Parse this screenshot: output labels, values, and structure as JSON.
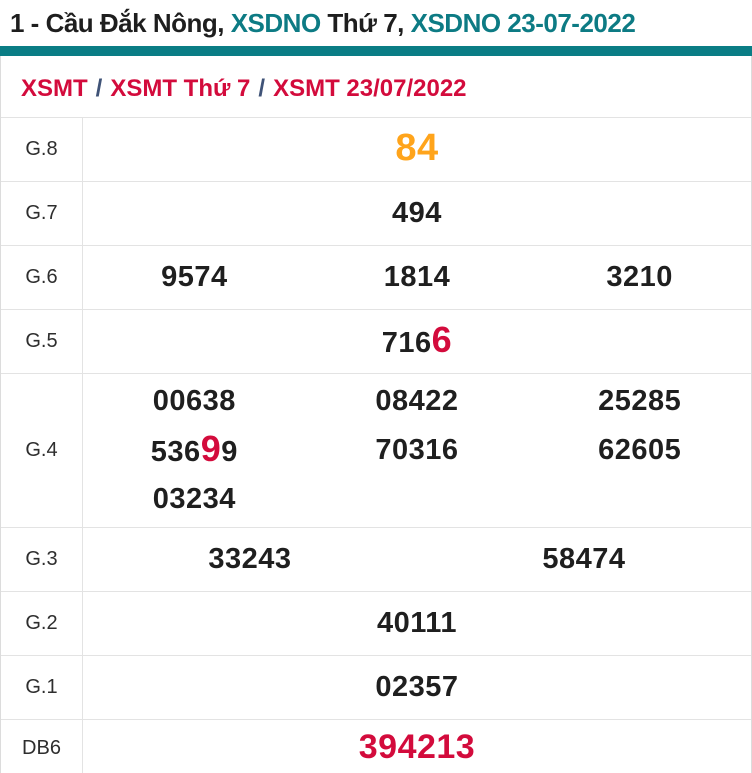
{
  "header": {
    "title_parts": [
      {
        "text": "1 - Cầu Đắk Nông, "
      },
      {
        "text": "XSDNO "
      },
      {
        "text": "Thứ 7, "
      },
      {
        "text": "XSDNO 23-07-2022"
      }
    ]
  },
  "breadcrumb": {
    "items": [
      "XSMT",
      "XSMT Thứ 7",
      "XSMT 23/07/2022"
    ],
    "separator": "/"
  },
  "colors": {
    "teal": "#0a7d85",
    "red": "#d30b3c",
    "orange": "#ffa41b",
    "footer_dark": "#253849"
  },
  "results_table": {
    "rows": [
      {
        "id": "g8",
        "label": "G.8",
        "columns": 1,
        "size": "normal",
        "cells": [
          [
            {
              "t": "84",
              "c": "orange"
            }
          ]
        ]
      },
      {
        "id": "g7",
        "label": "G.7",
        "columns": 1,
        "size": "normal",
        "cells": [
          [
            {
              "t": "494"
            }
          ]
        ]
      },
      {
        "id": "g6",
        "label": "G.6",
        "columns": 3,
        "size": "normal",
        "cells": [
          [
            {
              "t": "9574"
            }
          ],
          [
            {
              "t": "1814"
            }
          ],
          [
            {
              "t": "3210"
            }
          ]
        ]
      },
      {
        "id": "g5",
        "label": "G.5",
        "columns": 1,
        "size": "normal",
        "cells": [
          [
            {
              "t": "716"
            },
            {
              "t": "6",
              "c": "red xl"
            }
          ]
        ]
      },
      {
        "id": "g4",
        "label": "G.4",
        "columns": 3,
        "size": "tall",
        "cells": [
          [
            {
              "t": "00638"
            }
          ],
          [
            {
              "t": "08422"
            }
          ],
          [
            {
              "t": "25285"
            }
          ],
          [
            {
              "t": "536"
            },
            {
              "t": "9",
              "c": "red xl"
            },
            {
              "t": "9"
            }
          ],
          [
            {
              "t": "70316"
            }
          ],
          [
            {
              "t": "62605"
            }
          ],
          [
            {
              "t": "03234"
            }
          ]
        ]
      },
      {
        "id": "g3",
        "label": "G.3",
        "columns": 2,
        "size": "normal",
        "cells": [
          [
            {
              "t": "33243"
            }
          ],
          [
            {
              "t": "58474"
            }
          ]
        ]
      },
      {
        "id": "g2",
        "label": "G.2",
        "columns": 1,
        "size": "normal",
        "cells": [
          [
            {
              "t": "40111"
            }
          ]
        ]
      },
      {
        "id": "g1",
        "label": "G.1",
        "columns": 1,
        "size": "normal",
        "cells": [
          [
            {
              "t": "02357"
            }
          ]
        ]
      },
      {
        "id": "db6",
        "label": "DB6",
        "columns": 1,
        "size": "short",
        "cells": [
          [
            {
              "t": "394213",
              "c": "red db"
            }
          ]
        ]
      }
    ]
  }
}
